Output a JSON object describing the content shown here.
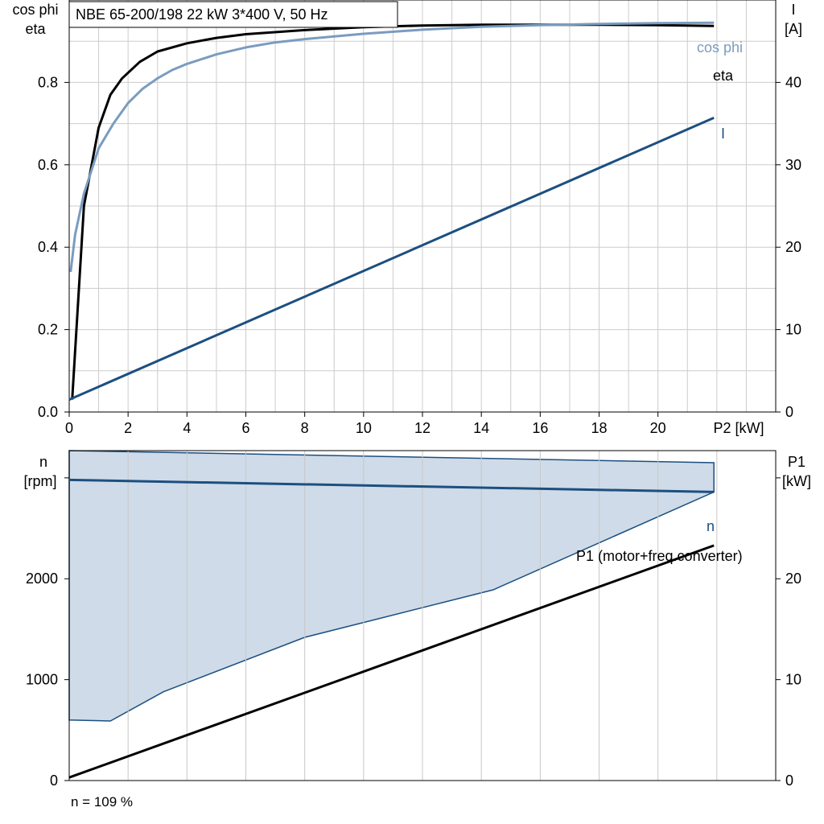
{
  "chart_data": [
    {
      "type": "line",
      "title": "NBE 65-200/198   22 kW   3*400 V, 50 Hz",
      "xlabel": "P2 [kW]",
      "ylabel_left_line1": "cos phi",
      "ylabel_left_line2": "eta",
      "ylabel_right_line1": "I",
      "ylabel_right_line2": "[A]",
      "xlim": [
        0,
        24
      ],
      "ylim_left": [
        0,
        1.0
      ],
      "ylim_right": [
        0,
        50
      ],
      "x_ticks": [
        0,
        2,
        4,
        6,
        8,
        10,
        12,
        14,
        16,
        18,
        20
      ],
      "y_ticks_left": [
        "0.0",
        "0.2",
        "0.4",
        "0.6",
        "0.8"
      ],
      "y_tick_values_left": [
        0,
        0.2,
        0.4,
        0.6,
        0.8
      ],
      "y_ticks_right": [
        "0",
        "10",
        "20",
        "30",
        "40"
      ],
      "y_tick_values_right": [
        0,
        10,
        20,
        30,
        40
      ],
      "grid": true,
      "series": [
        {
          "name": "eta",
          "axis": "left",
          "color": "#000000",
          "x": [
            0.1,
            0.5,
            1.0,
            1.4,
            1.8,
            2.4,
            3.0,
            4.0,
            5.0,
            6.0,
            8.0,
            10.0,
            12.0,
            14.0,
            16.0,
            18.0,
            20.0,
            21.9
          ],
          "y": [
            0.03,
            0.5,
            0.69,
            0.77,
            0.81,
            0.85,
            0.875,
            0.895,
            0.908,
            0.917,
            0.927,
            0.934,
            0.938,
            0.94,
            0.94,
            0.94,
            0.939,
            0.937
          ]
        },
        {
          "name": "cos phi",
          "axis": "left",
          "color": "#7a9cbf",
          "x": [
            0.05,
            0.2,
            0.5,
            1.0,
            1.5,
            2.0,
            2.5,
            3.0,
            3.5,
            4.0,
            5.0,
            6.0,
            7.0,
            8.0,
            10.0,
            12.0,
            14.0,
            16.0,
            18.0,
            20.0,
            21.9
          ],
          "y": [
            0.34,
            0.43,
            0.53,
            0.64,
            0.7,
            0.75,
            0.785,
            0.81,
            0.83,
            0.845,
            0.868,
            0.885,
            0.897,
            0.905,
            0.918,
            0.928,
            0.935,
            0.939,
            0.942,
            0.944,
            0.945
          ]
        },
        {
          "name": "I",
          "axis": "right",
          "color": "#1c4f80",
          "x": [
            0.0,
            21.9
          ],
          "y": [
            1.5,
            35.7
          ]
        }
      ]
    },
    {
      "type": "line",
      "xlabel": "",
      "ylabel_left_line1": "n",
      "ylabel_left_line2": "[rpm]",
      "ylabel_right_line1": "P1",
      "ylabel_right_line2": "[kW]",
      "xlim": [
        0,
        24
      ],
      "ylim_left": [
        0,
        3270
      ],
      "ylim_right": [
        0,
        32.7
      ],
      "y_ticks_left": [
        "0",
        "1000",
        "2000"
      ],
      "y_tick_values_left": [
        0,
        1000,
        2000
      ],
      "y_ticks_right": [
        "0",
        "10",
        "20"
      ],
      "y_tick_values_right": [
        0,
        10,
        20
      ],
      "grid": true,
      "region": {
        "color": "#cfdbe8",
        "edge_color": "#1c4f80",
        "x": [
          0.0,
          21.9,
          21.9,
          14.4,
          8.0,
          3.2,
          1.4,
          0.0
        ],
        "y": [
          3270,
          3150,
          2860,
          1890,
          1420,
          880,
          590,
          600
        ]
      },
      "series": [
        {
          "name": "n",
          "axis": "left",
          "color": "#1c4f80",
          "x": [
            0.0,
            21.9
          ],
          "y": [
            2980,
            2860
          ]
        },
        {
          "name": "P1 (motor+freq.converter)",
          "axis": "right",
          "color": "#000000",
          "x": [
            0.0,
            21.9
          ],
          "y": [
            0.3,
            23.3
          ]
        }
      ],
      "footnote": "n = 109 %"
    }
  ]
}
